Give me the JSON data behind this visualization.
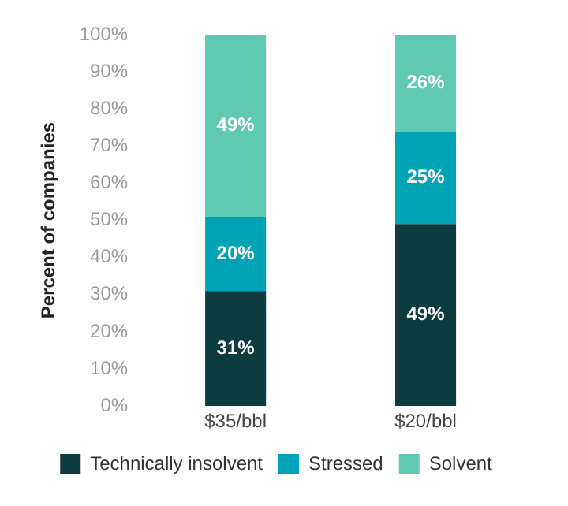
{
  "chart_data": {
    "type": "bar",
    "ylabel": "Percent of companies",
    "categories": [
      "$35/bbl",
      "$20/bbl"
    ],
    "stacked": true,
    "series": [
      {
        "name": "Technically insolvent",
        "color": "#0e3b3d",
        "values": [
          31,
          49
        ],
        "value_labels": [
          "31%",
          "49%"
        ]
      },
      {
        "name": "Stressed",
        "color": "#00a3b6",
        "values": [
          20,
          25
        ],
        "value_labels": [
          "20%",
          "25%"
        ]
      },
      {
        "name": "Solvent",
        "color": "#5fc9b1",
        "values": [
          49,
          26
        ],
        "value_labels": [
          "49%",
          "26%"
        ]
      }
    ],
    "ylim": [
      0,
      100
    ],
    "yticks": [
      {
        "value": 0,
        "label": "0%"
      },
      {
        "value": 10,
        "label": "10%"
      },
      {
        "value": 20,
        "label": "20%"
      },
      {
        "value": 30,
        "label": "30%"
      },
      {
        "value": 40,
        "label": "40%"
      },
      {
        "value": 50,
        "label": "50%"
      },
      {
        "value": 60,
        "label": "60%"
      },
      {
        "value": 70,
        "label": "70%"
      },
      {
        "value": 80,
        "label": "80%"
      },
      {
        "value": 90,
        "label": "90%"
      },
      {
        "value": 100,
        "label": "100%"
      }
    ],
    "grid": false,
    "legend": "bottom"
  }
}
